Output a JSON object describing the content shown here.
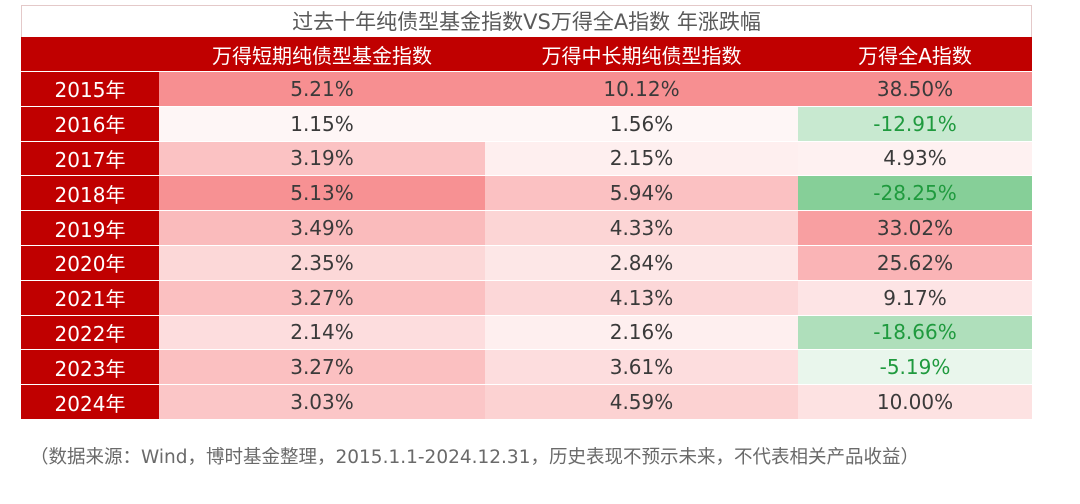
{
  "chart_data": {
    "type": "table",
    "title": "过去十年纯债型基金指数VS万得全A指数 年涨跌幅",
    "columns": [
      "",
      "万得短期纯债型基金指数",
      "万得中长期纯债型指数",
      "万得全A指数"
    ],
    "rows": [
      {
        "year": "2015年",
        "short": "5.21%",
        "mid": "10.12%",
        "all": "38.50%"
      },
      {
        "year": "2016年",
        "short": "1.15%",
        "mid": "1.56%",
        "all": "-12.91%"
      },
      {
        "year": "2017年",
        "short": "3.19%",
        "mid": "2.15%",
        "all": "4.93%"
      },
      {
        "year": "2018年",
        "short": "5.13%",
        "mid": "5.94%",
        "all": "-28.25%"
      },
      {
        "year": "2019年",
        "short": "3.49%",
        "mid": "4.33%",
        "all": "33.02%"
      },
      {
        "year": "2020年",
        "short": "2.35%",
        "mid": "2.84%",
        "all": "25.62%"
      },
      {
        "year": "2021年",
        "short": "3.27%",
        "mid": "4.13%",
        "all": "9.17%"
      },
      {
        "year": "2022年",
        "short": "2.14%",
        "mid": "2.16%",
        "all": "-18.66%"
      },
      {
        "year": "2023年",
        "short": "3.27%",
        "mid": "3.61%",
        "all": "-5.19%"
      },
      {
        "year": "2024年",
        "short": "3.03%",
        "mid": "4.59%",
        "all": "10.00%"
      }
    ],
    "colors": {
      "header": "#c00000",
      "positive_max": "#f78f91",
      "negative_max": "#86cf98",
      "neutral": "#ffffff"
    }
  },
  "source_note": "（数据来源：Wind，博时基金整理，2015.1.1-2024.12.31，历史表现不预示未来，不代表相关产品收益）"
}
